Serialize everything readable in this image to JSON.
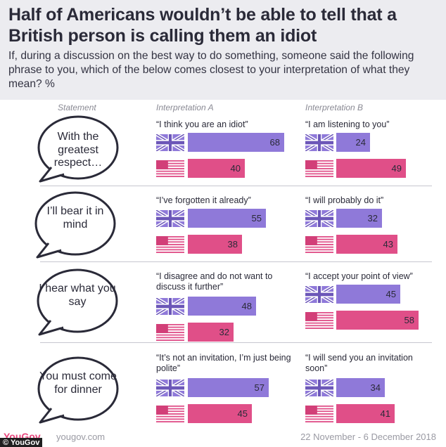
{
  "title": "Half of Americans wouldn’t be able to tell that a British person is calling them an idiot",
  "subtitle": "If, during a discussion on the best way to do something, someone said the following phrase to you, which of the below comes closest to your interpretation of what they mean? %",
  "columns": {
    "statement": "Statement",
    "a": "Interpretation A",
    "b": "Interpretation B"
  },
  "colors": {
    "uk": "#8f79d9",
    "us": "#e04f88"
  },
  "chart_data": {
    "type": "bar",
    "title": "Half of Americans wouldn’t be able to tell that a British person is calling them an idiot",
    "unit": "%",
    "series": [
      {
        "name": "UK"
      },
      {
        "name": "US"
      }
    ],
    "rows": [
      {
        "statement": "With the greatest respect…",
        "a": {
          "text": "“I think you are an idiot”",
          "uk": 68,
          "us": 40
        },
        "b": {
          "text": "“I am listening to you”",
          "uk": 24,
          "us": 49
        }
      },
      {
        "statement": "I’ll bear it in mind",
        "a": {
          "text": "“I’ve forgotten it already”",
          "uk": 55,
          "us": 38
        },
        "b": {
          "text": "“I will probably do it”",
          "uk": 32,
          "us": 43
        }
      },
      {
        "statement": "I hear what you say",
        "a": {
          "text": "“I disagree and do not want to discuss it further”",
          "uk": 48,
          "us": 32
        },
        "b": {
          "text": "“I accept your point of view”",
          "uk": 45,
          "us": 58
        }
      },
      {
        "statement": "You must come for dinner",
        "a": {
          "text": "“It’s not an invitation, I’m just being polite”",
          "uk": 57,
          "us": 45
        },
        "b": {
          "text": "“I will send you an invitation soon”",
          "uk": 34,
          "us": 41
        }
      }
    ]
  },
  "footer": {
    "logo": "YouGov",
    "site": "yougov.com",
    "date": "22 November - 6 December 2018",
    "credit": "© YouGov"
  }
}
